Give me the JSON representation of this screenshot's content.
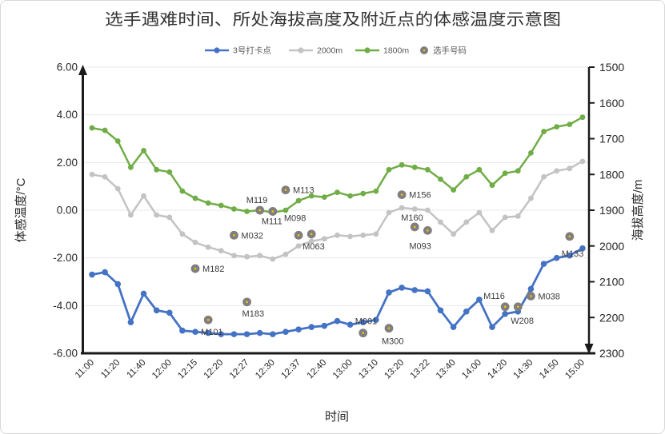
{
  "chart_data": {
    "type": "line+scatter",
    "title": "选手遇难时间、所处海拔高度及附近点的体感温度示意图",
    "xlabel": "时间",
    "ylabel_left": "体感温度/°C",
    "ylabel_right": "海拔高度/m",
    "y_left_axis": {
      "min": -6,
      "max": 6,
      "ticks": [
        "6.00",
        "4.00",
        "2.00",
        "0.00",
        "-2.00",
        "-4.00",
        "-6.00"
      ]
    },
    "y_right_axis": {
      "top_value": 1500,
      "bottom_value": 2300,
      "direction": "increases downward",
      "ticks": [
        "1500",
        "1600",
        "1700",
        "1800",
        "1900",
        "2000",
        "2100",
        "2200",
        "2300"
      ]
    },
    "x_ticks": [
      "11:00",
      "11:20",
      "11:40",
      "12:00",
      "12:15",
      "12:20",
      "12:27",
      "12:30",
      "12:37",
      "12:40",
      "13:00",
      "13:10",
      "13:20",
      "13:22",
      "13:40",
      "14:00",
      "14:20",
      "14:30",
      "14:50",
      "15:00"
    ],
    "points_per_series": 39,
    "x_tick_at_even_point_indices": true,
    "grid": "horizontal major gridlines on",
    "legend_position": "top-center",
    "series": [
      {
        "name": "3号打卡点",
        "color": "#4472C4",
        "axis": "left(°C)",
        "values": [
          -2.7,
          -2.6,
          -3.1,
          -4.7,
          -3.5,
          -4.2,
          -4.3,
          -5.05,
          -5.1,
          -5.15,
          -5.2,
          -5.2,
          -5.2,
          -5.15,
          -5.2,
          -5.1,
          -5.0,
          -4.9,
          -4.85,
          -4.65,
          -4.8,
          -4.7,
          -4.6,
          -3.45,
          -3.25,
          -3.35,
          -3.4,
          -4.2,
          -4.9,
          -4.25,
          -3.75,
          -4.9,
          -4.35,
          -4.25,
          -3.3,
          -2.25,
          -2.0,
          -1.9,
          -1.6
        ]
      },
      {
        "name": "2000m",
        "color": "#C3C3C3",
        "axis": "left(°C)",
        "values": [
          1.5,
          1.4,
          0.9,
          -0.2,
          0.6,
          -0.2,
          -0.3,
          -1.0,
          -1.35,
          -1.55,
          -1.7,
          -1.9,
          -1.95,
          -1.9,
          -2.05,
          -1.85,
          -1.5,
          -1.3,
          -1.2,
          -1.05,
          -1.1,
          -1.05,
          -1.0,
          -0.1,
          0.1,
          0.05,
          0.0,
          -0.5,
          -1.0,
          -0.5,
          -0.1,
          -0.85,
          -0.3,
          -0.25,
          0.5,
          1.4,
          1.65,
          1.75,
          2.05
        ]
      },
      {
        "name": "1800m",
        "color": "#70AD47",
        "axis": "left(°C)",
        "values": [
          3.45,
          3.35,
          2.9,
          1.8,
          2.5,
          1.7,
          1.6,
          0.8,
          0.5,
          0.3,
          0.2,
          0.05,
          -0.05,
          0.0,
          -0.1,
          0.0,
          0.4,
          0.6,
          0.55,
          0.75,
          0.6,
          0.7,
          0.8,
          1.7,
          1.9,
          1.8,
          1.7,
          1.3,
          0.85,
          1.4,
          1.7,
          1.05,
          1.55,
          1.65,
          2.4,
          3.3,
          3.5,
          3.6,
          3.9
        ]
      }
    ],
    "scatter": {
      "name": "选手号码",
      "color": "#7F7F7F",
      "center_dot_color": "#FFC000",
      "points": [
        {
          "label": "M182",
          "x_index": 8,
          "y_temp": -2.45,
          "altitude_m": 2065,
          "dx": 9,
          "dy": 4
        },
        {
          "label": "M101",
          "x_index": 9,
          "y_temp": -4.6,
          "altitude_m": 2205,
          "dx": -9,
          "dy": 19
        },
        {
          "label": "M032",
          "x_index": 11,
          "y_temp": -1.05,
          "altitude_m": 1970,
          "dx": 9,
          "dy": 4
        },
        {
          "label": "M183",
          "x_index": 12,
          "y_temp": -3.85,
          "altitude_m": 2155,
          "dx": -6,
          "dy": 18
        },
        {
          "label": "M119",
          "x_index": 13,
          "y_temp": 0.0,
          "altitude_m": 1900,
          "dx": -17,
          "dy": -9
        },
        {
          "label": "M111",
          "x_index": 14,
          "y_temp": -0.05,
          "altitude_m": 1905,
          "dx": -14,
          "dy": 16
        },
        {
          "label": "M098",
          "x_index": 14,
          "y_temp": -0.05,
          "altitude_m": 1905,
          "dx": 14,
          "dy": 12
        },
        {
          "label": "M113",
          "x_index": 15,
          "y_temp": 0.85,
          "altitude_m": 1845,
          "dx": 9,
          "dy": 4
        },
        {
          "label": "",
          "x_index": 16,
          "y_temp": -1.05,
          "altitude_m": 1970,
          "dx": 0,
          "dy": 0
        },
        {
          "label": "M063",
          "x_index": 17,
          "y_temp": -1.0,
          "altitude_m": 1965,
          "dx": -11,
          "dy": 19
        },
        {
          "label": "M001",
          "x_index": 21,
          "y_temp": -5.15,
          "altitude_m": 2245,
          "dx": -10,
          "dy": -11
        },
        {
          "label": "M300",
          "x_index": 23,
          "y_temp": -4.95,
          "altitude_m": 2230,
          "dx": -9,
          "dy": 20
        },
        {
          "label": "M156",
          "x_index": 24,
          "y_temp": 0.65,
          "altitude_m": 1855,
          "dx": 9,
          "dy": 4
        },
        {
          "label": "M160",
          "x_index": 25,
          "y_temp": -0.7,
          "altitude_m": 1945,
          "dx": -17,
          "dy": -8
        },
        {
          "label": "M093",
          "x_index": 26,
          "y_temp": -0.85,
          "altitude_m": 1955,
          "dx": -23,
          "dy": 23
        },
        {
          "label": "M116",
          "x_index": 32,
          "y_temp": -4.05,
          "altitude_m": 2170,
          "dx": -27,
          "dy": -10
        },
        {
          "label": "W208",
          "x_index": 33,
          "y_temp": -4.05,
          "altitude_m": 2170,
          "dx": -9,
          "dy": 21
        },
        {
          "label": "M038",
          "x_index": 34,
          "y_temp": -3.6,
          "altitude_m": 2140,
          "dx": 9,
          "dy": 4
        },
        {
          "label": "M133",
          "x_index": 37,
          "y_temp": -1.1,
          "altitude_m": 1975,
          "dx": -10,
          "dy": 25
        }
      ]
    },
    "legend": [
      {
        "label": "3号打卡点",
        "color": "#4472C4",
        "type": "line"
      },
      {
        "label": "2000m",
        "color": "#C3C3C3",
        "type": "line"
      },
      {
        "label": "1800m",
        "color": "#70AD47",
        "type": "line"
      },
      {
        "label": "选手号码",
        "color": "#7F7F7F",
        "type": "dot"
      }
    ]
  }
}
